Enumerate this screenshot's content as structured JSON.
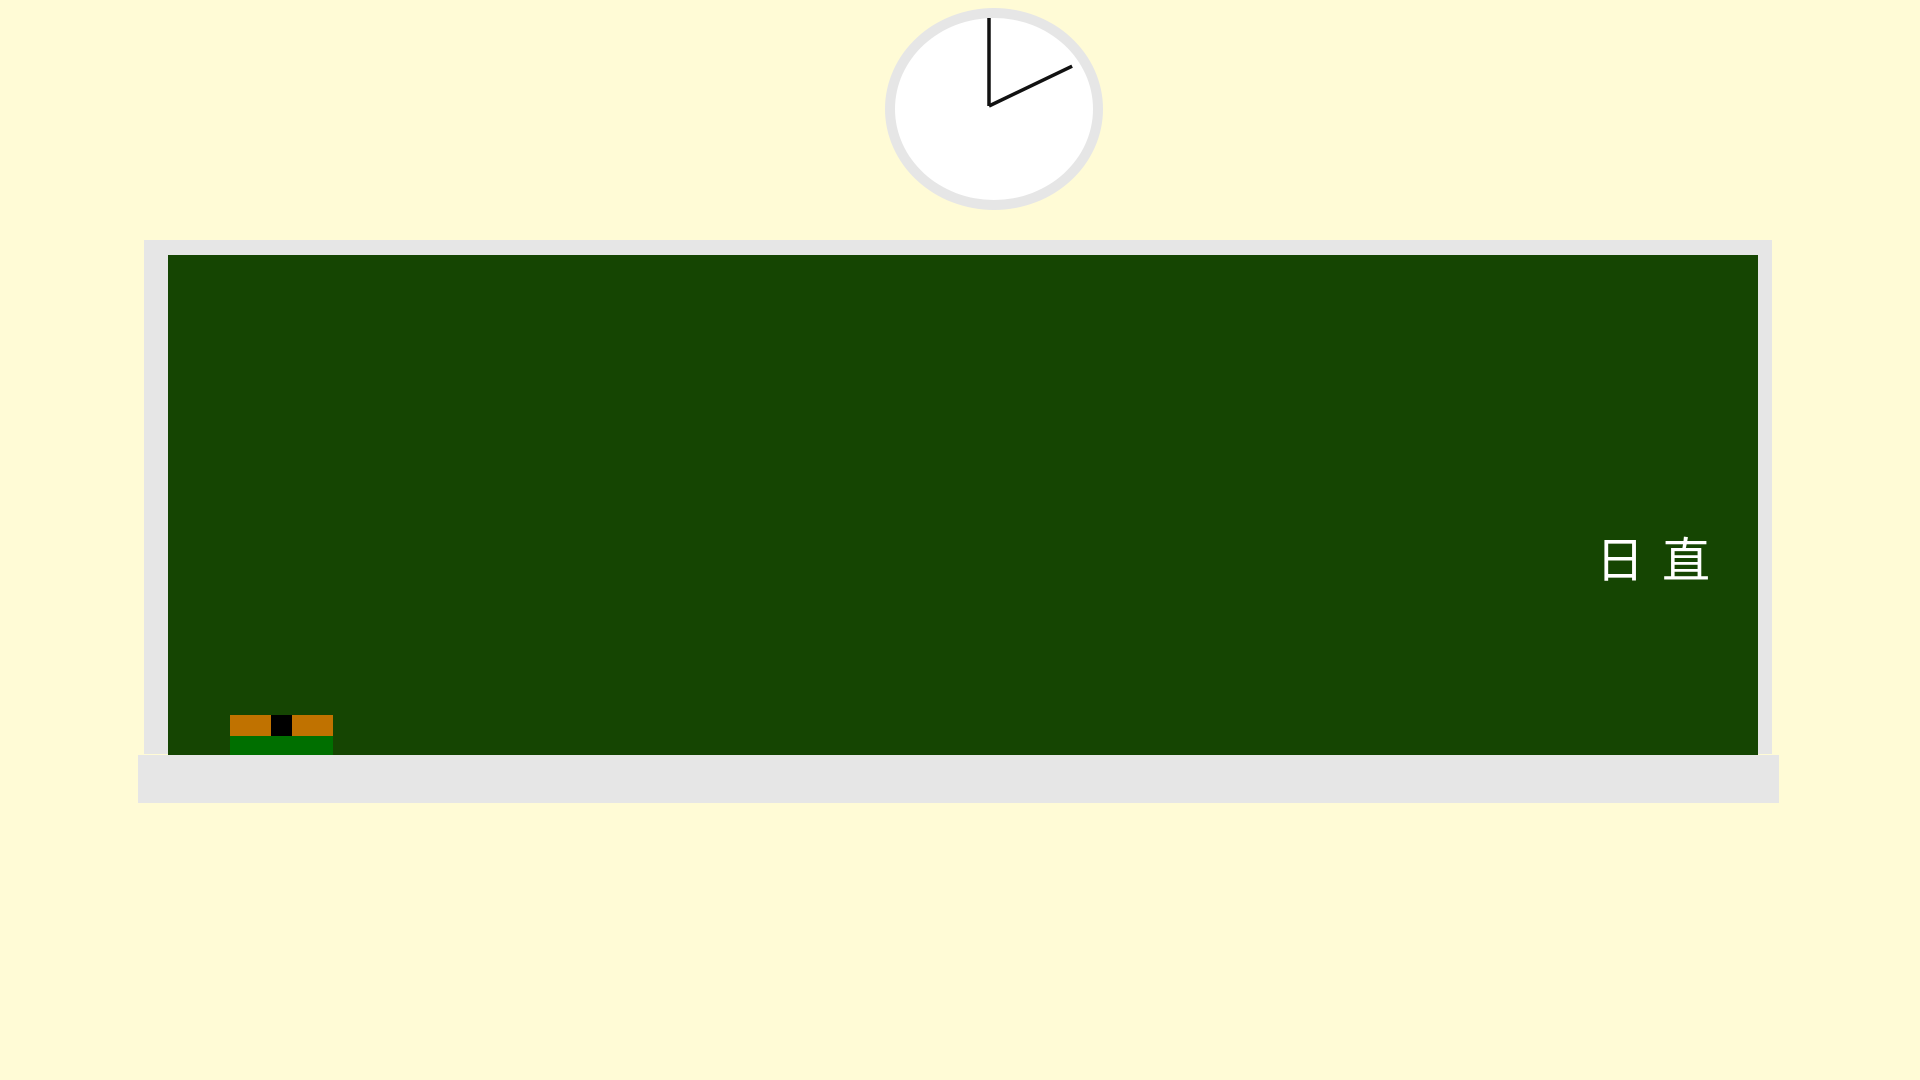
{
  "colors": {
    "wall": "#fffbd6",
    "board": "#154502",
    "frame": "#e6e6e6",
    "clock_face": "#ffffff",
    "clock_rim": "#e6e6e6",
    "clock_hands": "#111111",
    "board_text": "#ffffff",
    "eraser_wood": "#c07200",
    "eraser_handle": "#000000",
    "eraser_felt": "#006f00"
  },
  "clock": {
    "hour": 2,
    "minute": 0
  },
  "board": {
    "duty_label": "日直"
  }
}
